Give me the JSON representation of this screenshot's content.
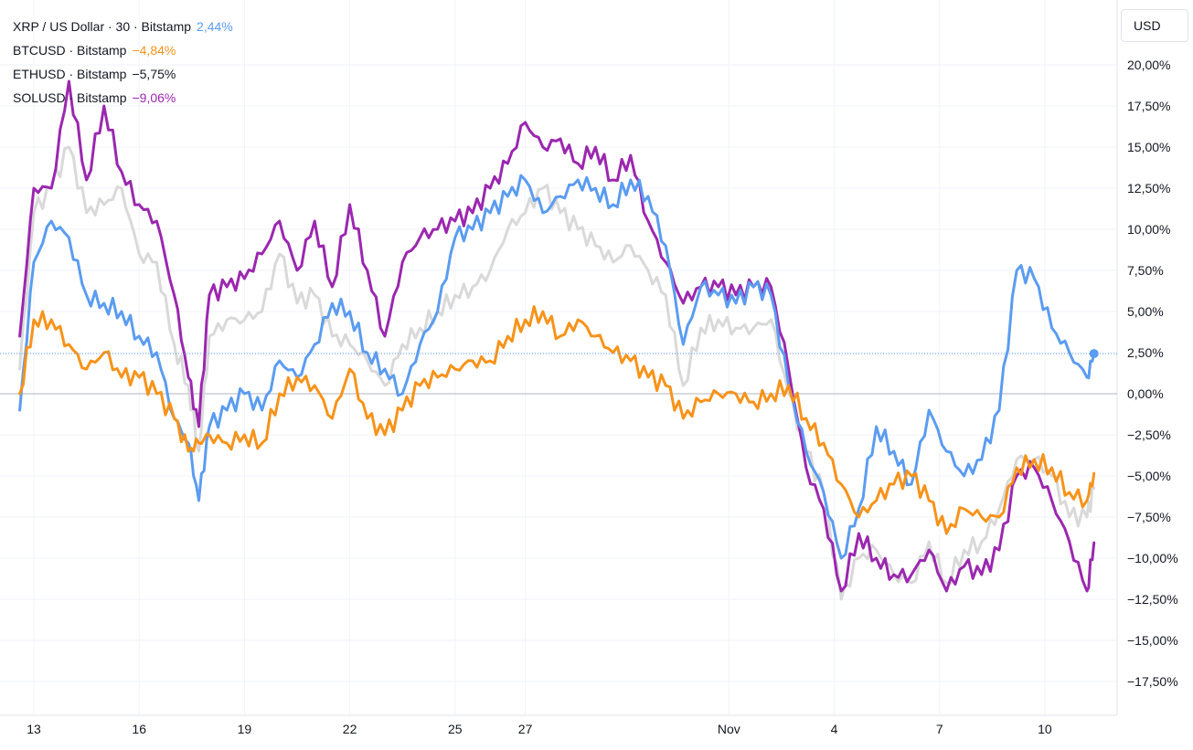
{
  "chart_data": {
    "type": "line",
    "title": "XRP / US Dollar · 30 · Bitstamp",
    "currency": "USD",
    "legend_placement": "top-left",
    "grid": true,
    "x_ticks": [
      "13",
      "16",
      "19",
      "22",
      "25",
      "27",
      "Nov",
      "4",
      "7",
      "10"
    ],
    "y_ticks": [
      "20,00%",
      "17,50%",
      "15,00%",
      "12,50%",
      "10,00%",
      "7,50%",
      "5,00%",
      "2,50%",
      "0,00%",
      "−2,50%",
      "−5,00%",
      "−7,50%",
      "−10,00%",
      "−12,50%",
      "−15,00%",
      "−17,50%"
    ],
    "ylim": [
      -19,
      22
    ],
    "x": [
      12.6,
      13,
      13.5,
      14,
      14.5,
      15,
      15.5,
      16,
      16.5,
      17,
      17.4,
      17.7,
      18,
      18.5,
      19,
      19.5,
      20,
      20.5,
      21,
      21.5,
      22,
      22.5,
      23,
      23.5,
      24,
      24.5,
      25,
      25.5,
      26,
      26.5,
      27,
      27.5,
      28,
      28.5,
      29,
      29.5,
      30,
      30.5,
      31,
      31.5,
      32,
      32.5,
      33,
      33.5,
      34,
      34.5,
      35,
      35.5,
      36,
      36.5,
      37,
      37.5,
      38,
      38.5,
      39,
      39.5,
      40,
      40.5,
      41,
      41.5,
      42,
      42.5,
      43,
      43.2
    ],
    "series": [
      {
        "name": "XRP / US Dollar · 30 · Bitstamp",
        "label": "2,44%",
        "color": "#5b9cf0",
        "values": [
          -1.0,
          8.0,
          10.5,
          9.5,
          6.0,
          5.5,
          5.0,
          3.5,
          2.5,
          -1.5,
          -3.0,
          -6.5,
          -2.0,
          -1.0,
          0.0,
          -1.0,
          2.0,
          1.0,
          3.0,
          5.5,
          5.0,
          2.5,
          1.5,
          0.0,
          3.0,
          5.0,
          9.5,
          10.0,
          11.0,
          12.0,
          13.0,
          11.0,
          12.0,
          13.0,
          12.5,
          11.5,
          13.0,
          12.0,
          9.0,
          3.0,
          6.5,
          6.0,
          5.5,
          6.5,
          6.0,
          0.5,
          -3.5,
          -6.0,
          -10.0,
          -7.0,
          -2.0,
          -3.5,
          -5.5,
          -1.0,
          -3.5,
          -5.0,
          -4.0,
          -1.0,
          7.5,
          7.0,
          4.0,
          2.5,
          1.0,
          2.44
        ]
      },
      {
        "name": "BTCUSD · Bitstamp",
        "label": "−4,84%",
        "color": "#f7931a",
        "values": [
          0.0,
          4.5,
          4.5,
          3.0,
          1.5,
          2.5,
          1.0,
          1.0,
          0.0,
          -1.5,
          -3.5,
          -3.0,
          -2.5,
          -3.0,
          -2.5,
          -3.0,
          0.0,
          1.0,
          0.5,
          -1.5,
          1.5,
          -1.5,
          -2.5,
          -1.0,
          0.5,
          1.0,
          1.5,
          2.0,
          2.0,
          3.5,
          4.5,
          5.0,
          3.5,
          4.5,
          3.5,
          2.5,
          2.0,
          1.0,
          0.5,
          -1.5,
          -0.5,
          0.0,
          0.0,
          -0.5,
          0.0,
          0.5,
          -1.5,
          -3.0,
          -5.5,
          -7.5,
          -6.5,
          -5.5,
          -5.0,
          -6.5,
          -8.5,
          -7.0,
          -7.5,
          -7.5,
          -4.5,
          -4.0,
          -4.5,
          -6.0,
          -6.5,
          -4.84
        ]
      },
      {
        "name": "ETHUSD · Bitstamp",
        "label": "−5,75%",
        "color": "#d9d9d9",
        "values": [
          1.5,
          11.0,
          12.5,
          15.0,
          11.0,
          11.5,
          12.5,
          8.5,
          8.0,
          3.0,
          0.5,
          -3.5,
          3.5,
          4.5,
          4.5,
          5.0,
          8.5,
          5.5,
          6.0,
          3.5,
          3.0,
          2.0,
          0.5,
          3.0,
          4.0,
          5.0,
          6.0,
          6.5,
          7.5,
          10.0,
          11.0,
          12.5,
          11.0,
          10.0,
          9.0,
          8.0,
          9.0,
          7.5,
          6.0,
          0.5,
          4.0,
          4.5,
          4.0,
          4.0,
          4.5,
          0.0,
          -3.5,
          -6.0,
          -12.5,
          -10.0,
          -9.5,
          -11.0,
          -11.5,
          -9.0,
          -11.5,
          -9.5,
          -9.0,
          -7.0,
          -4.0,
          -4.0,
          -5.0,
          -7.5,
          -7.5,
          -5.75
        ]
      },
      {
        "name": "SOLUSD · Bitstamp",
        "label": "−9,06%",
        "color": "#9b27af",
        "values": [
          3.5,
          12.5,
          12.5,
          19.0,
          13.0,
          17.5,
          13.5,
          11.5,
          10.5,
          6.0,
          1.0,
          -2.0,
          6.0,
          6.5,
          7.0,
          8.5,
          10.5,
          7.5,
          10.5,
          6.5,
          11.5,
          7.5,
          3.5,
          8.0,
          9.5,
          10.0,
          10.5,
          11.0,
          12.5,
          14.0,
          16.5,
          15.0,
          15.5,
          14.0,
          15.0,
          13.0,
          14.5,
          10.5,
          8.0,
          5.5,
          6.5,
          6.5,
          6.0,
          6.5,
          6.5,
          1.5,
          -4.5,
          -7.0,
          -12.0,
          -8.5,
          -10.0,
          -11.0,
          -11.0,
          -9.5,
          -12.0,
          -10.5,
          -11.0,
          -9.5,
          -5.0,
          -4.5,
          -6.5,
          -9.0,
          -12.0,
          -9.06
        ]
      }
    ]
  }
}
